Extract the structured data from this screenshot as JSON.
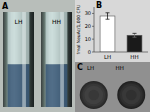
{
  "chart_data": [
    {
      "type": "image",
      "title": "A",
      "annotations": [
        "LH",
        "HH"
      ]
    },
    {
      "type": "bar",
      "title": "B",
      "categories": [
        "LH",
        "HH"
      ],
      "values": [
        28,
        13
      ],
      "error": [
        2.5,
        1.5
      ],
      "colors": [
        "#ffffff",
        "#1a1a1a"
      ],
      "ylabel": "fmol NeuAc/1,000 CFU",
      "ylim": [
        0,
        35
      ],
      "yticks": [
        0,
        10,
        20,
        30
      ],
      "grid": false
    },
    {
      "type": "image",
      "title": "C",
      "annotations": [
        "LH",
        "HH"
      ]
    }
  ]
}
